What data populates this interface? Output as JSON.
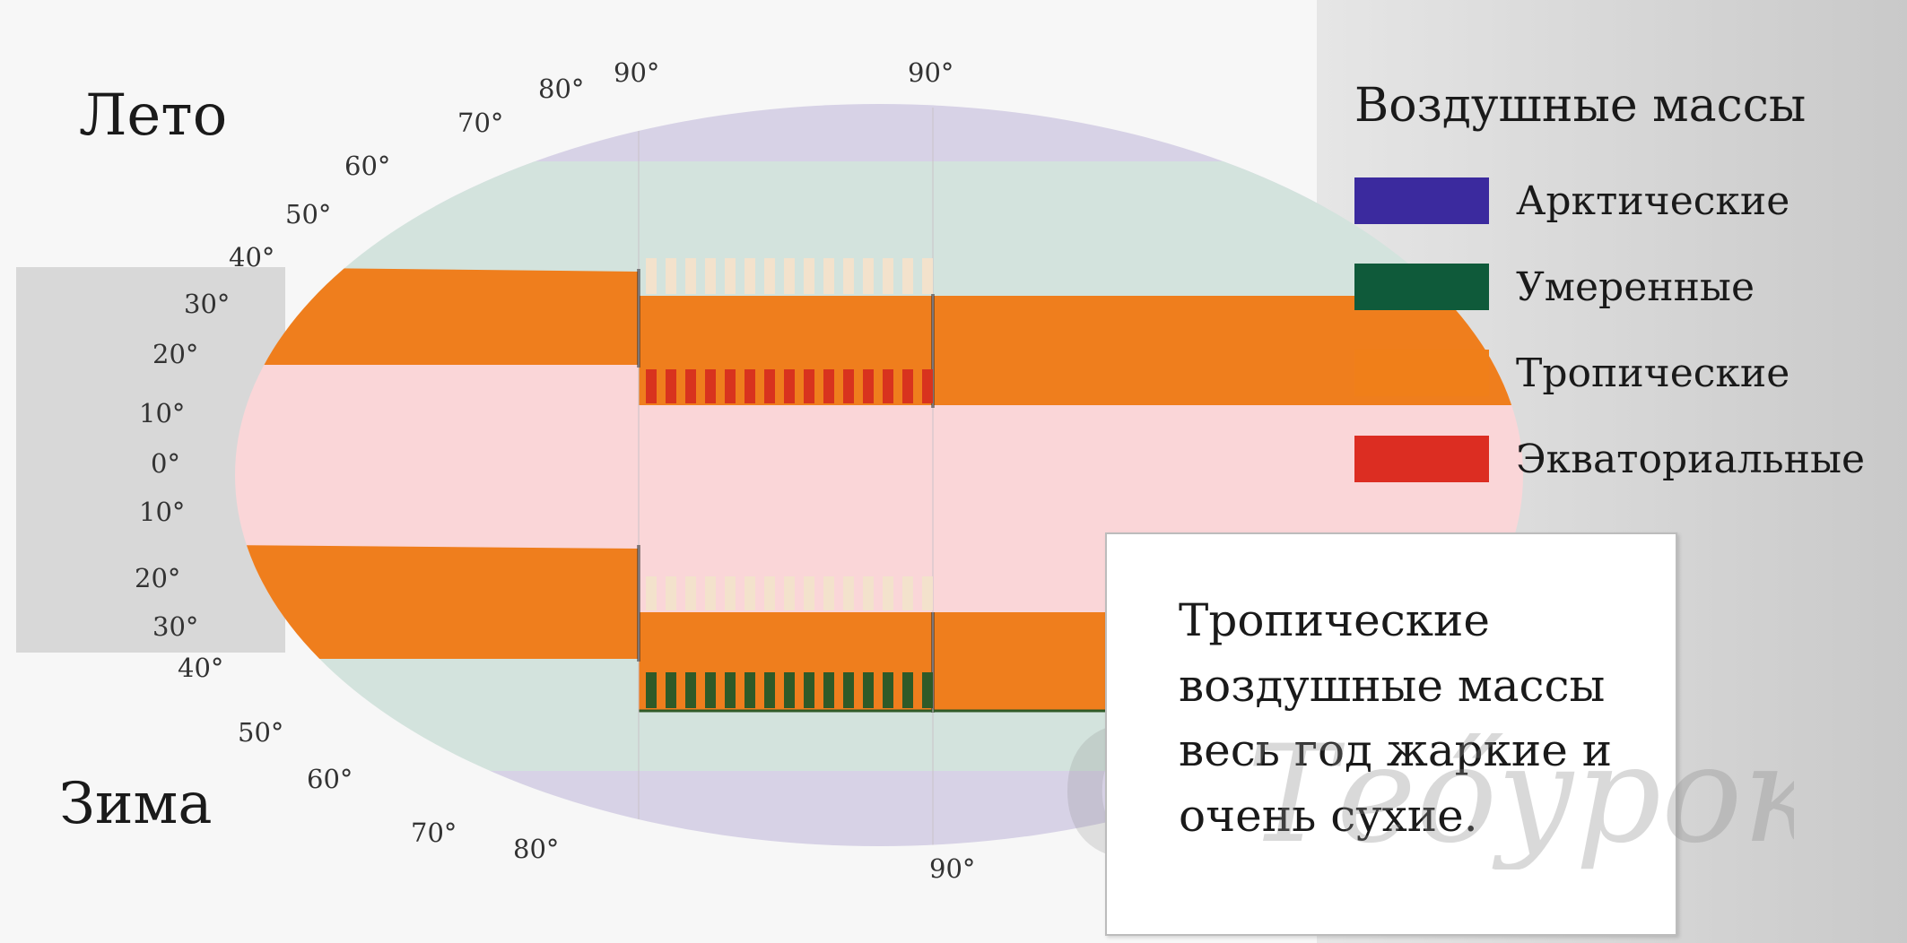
{
  "seasons": {
    "summer": "Лето",
    "winter": "Зима"
  },
  "latitudes": {
    "top_left": [
      "40°",
      "50°",
      "60°",
      "70°",
      "80°",
      "90°"
    ],
    "top_center": "90°",
    "left": [
      "30°",
      "20°",
      "10°",
      "0°",
      "10°",
      "20°",
      "30°",
      "40°"
    ],
    "bottom_left": [
      "50°",
      "60°",
      "70°",
      "80°"
    ],
    "bottom_center": "90°"
  },
  "legend": {
    "title": "Воздушные массы",
    "items": [
      {
        "label": "Арктические",
        "color": "#3b2a9e"
      },
      {
        "label": "Умеренные",
        "color": "#0f5a3a"
      },
      {
        "label": "Тропические",
        "color": "#f07f19"
      },
      {
        "label": "Экваториальные",
        "color": "#dc2d22"
      }
    ]
  },
  "note": {
    "text": "Тропические воздушные массы весь год жаркие и очень сухие."
  },
  "watermark": {
    "text": "Теőурок"
  },
  "colors": {
    "arctic_zone": "#d7d2e6",
    "temperate_zone": "#d3e3dd",
    "tropical_zone": "#ef7e1d",
    "equatorial_zone": "#fad6d8",
    "stripe_light": "#f3e2cc",
    "stripe_red": "#d8331e",
    "stripe_green": "#2f5a28",
    "side_band": "#d8d8d8"
  }
}
